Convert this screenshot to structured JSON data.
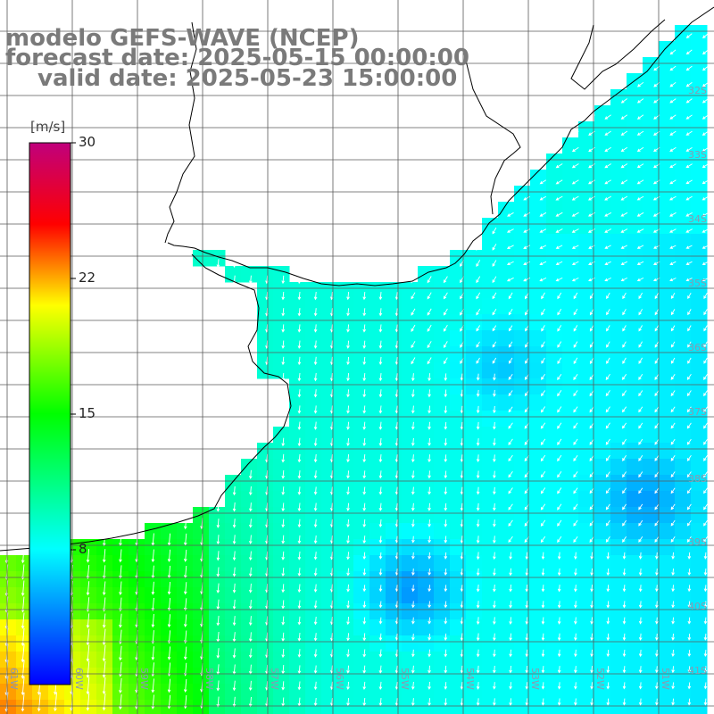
{
  "title": {
    "model": "modelo GEFS-WAVE (NCEP)",
    "forecast": "forecast date: 2025-05-15 00:00:00",
    "valid": "valid date: 2025-05-23 15:00:00"
  },
  "colorbar": {
    "units": "[m/s]",
    "ticks": [
      "30",
      "22",
      "15",
      "8"
    ],
    "range": [
      0,
      30
    ],
    "stops": [
      "#0000ff",
      "#00ffff",
      "#00ff00",
      "#ffff00",
      "#ff0000",
      "#c0007c"
    ]
  },
  "lat_labels": [
    "32S",
    "33S",
    "34S",
    "35S",
    "36S",
    "37S",
    "38S",
    "39S",
    "40S",
    "41S"
  ],
  "lon_labels": [
    "61W",
    "60W",
    "59W",
    "58W",
    "57W",
    "56W",
    "55W",
    "54W",
    "53W",
    "52W",
    "51W"
  ],
  "colors": {
    "land": "#ffffff",
    "coast": "#000000",
    "grid": "#5a5a5a",
    "arrow": "#ffffff",
    "title": "#7a7a7a"
  }
}
